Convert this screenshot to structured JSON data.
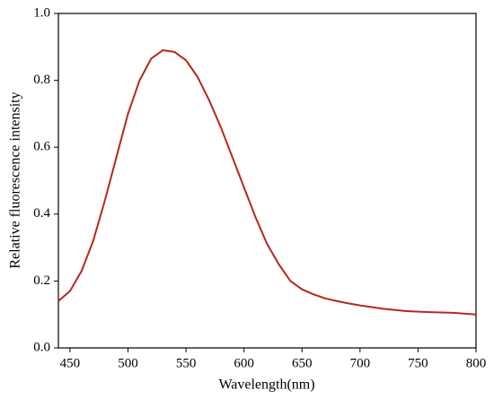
{
  "chart_data": {
    "type": "line",
    "x_label": "Wavelength(nm)",
    "y_label": "Relative fluorescence intensity",
    "x": [
      440,
      450,
      460,
      470,
      480,
      490,
      500,
      510,
      520,
      530,
      540,
      550,
      560,
      570,
      580,
      590,
      600,
      610,
      620,
      630,
      640,
      650,
      660,
      670,
      680,
      690,
      700,
      720,
      740,
      760,
      780,
      800
    ],
    "series": [
      {
        "color": "#b5281e",
        "values": [
          0.14,
          0.17,
          0.23,
          0.32,
          0.44,
          0.57,
          0.7,
          0.8,
          0.865,
          0.89,
          0.885,
          0.86,
          0.81,
          0.74,
          0.66,
          0.57,
          0.48,
          0.39,
          0.31,
          0.25,
          0.2,
          0.175,
          0.16,
          0.148,
          0.14,
          0.133,
          0.127,
          0.117,
          0.11,
          0.107,
          0.105,
          0.1
        ]
      }
    ],
    "xlim": [
      440,
      800
    ],
    "xticks": [
      450,
      500,
      550,
      600,
      650,
      700,
      750,
      800
    ],
    "ylim": [
      0,
      1
    ],
    "yticks": [
      {
        "value": 0,
        "label": "0.0"
      },
      0.2,
      0.4,
      0.6,
      0.8,
      {
        "value": 1,
        "label": "1.0"
      }
    ]
  }
}
